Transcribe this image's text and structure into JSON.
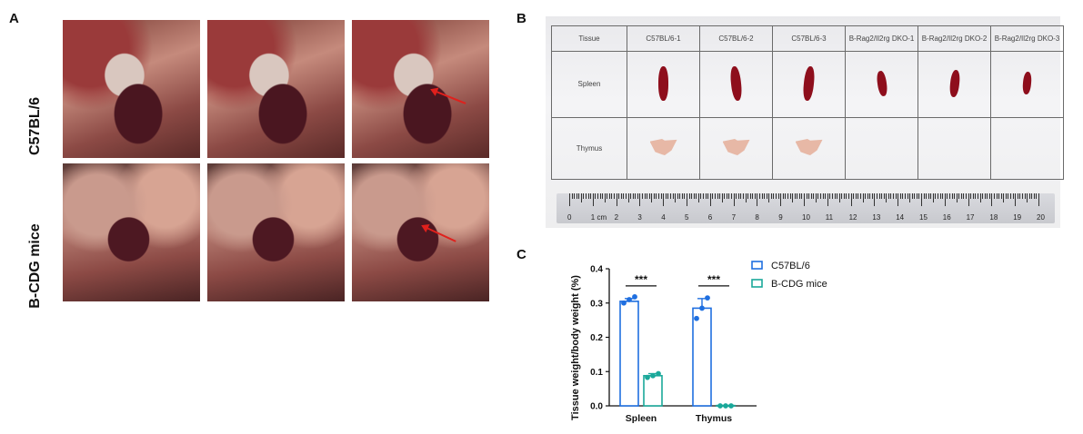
{
  "panel_a": {
    "letter": "A",
    "row_labels": [
      "C57BL/6",
      "B-CDG mice"
    ]
  },
  "panel_b": {
    "letter": "B",
    "headers": [
      "Tissue",
      "C57BL/6-1",
      "C57BL/6-2",
      "C57BL/6-3",
      "B-Rag2/Il2rg DKO-1",
      "B-Rag2/Il2rg DKO-2",
      "B-Rag2/Il2rg DKO-3"
    ],
    "rows": [
      "Spleen",
      "Thymus"
    ],
    "ruler_labels": [
      "0",
      "1 cm",
      "2",
      "3",
      "4",
      "5",
      "6",
      "7",
      "8",
      "9",
      "10",
      "11",
      "12",
      "13",
      "14",
      "15",
      "16",
      "17",
      "18",
      "19",
      "20"
    ]
  },
  "panel_c": {
    "letter": "C"
  },
  "chart_data": {
    "type": "bar",
    "categories": [
      "Spleen",
      "Thymus"
    ],
    "ylabel": "Tissue weight/body weight (%)",
    "xlabel": "",
    "ylim": [
      0,
      0.4
    ],
    "yticks": [
      "0.0",
      "0.1",
      "0.2",
      "0.3",
      "0.4"
    ],
    "series": [
      {
        "name": "C57BL/6",
        "color": "#1f6fe0",
        "values": [
          0.305,
          0.285
        ],
        "errors": [
          0.008,
          0.028
        ],
        "points": [
          [
            0.3,
            0.31,
            0.318
          ],
          [
            0.255,
            0.285,
            0.315
          ]
        ]
      },
      {
        "name": "B-CDG mice",
        "color": "#1aa89a",
        "values": [
          0.088,
          0.001
        ],
        "errors": [
          0.006,
          0.0005
        ],
        "points": [
          [
            0.083,
            0.088,
            0.094
          ],
          [
            0.0,
            0.0,
            0.0
          ]
        ]
      }
    ],
    "significance": [
      "***",
      "***"
    ],
    "legend_position": "top-right"
  }
}
